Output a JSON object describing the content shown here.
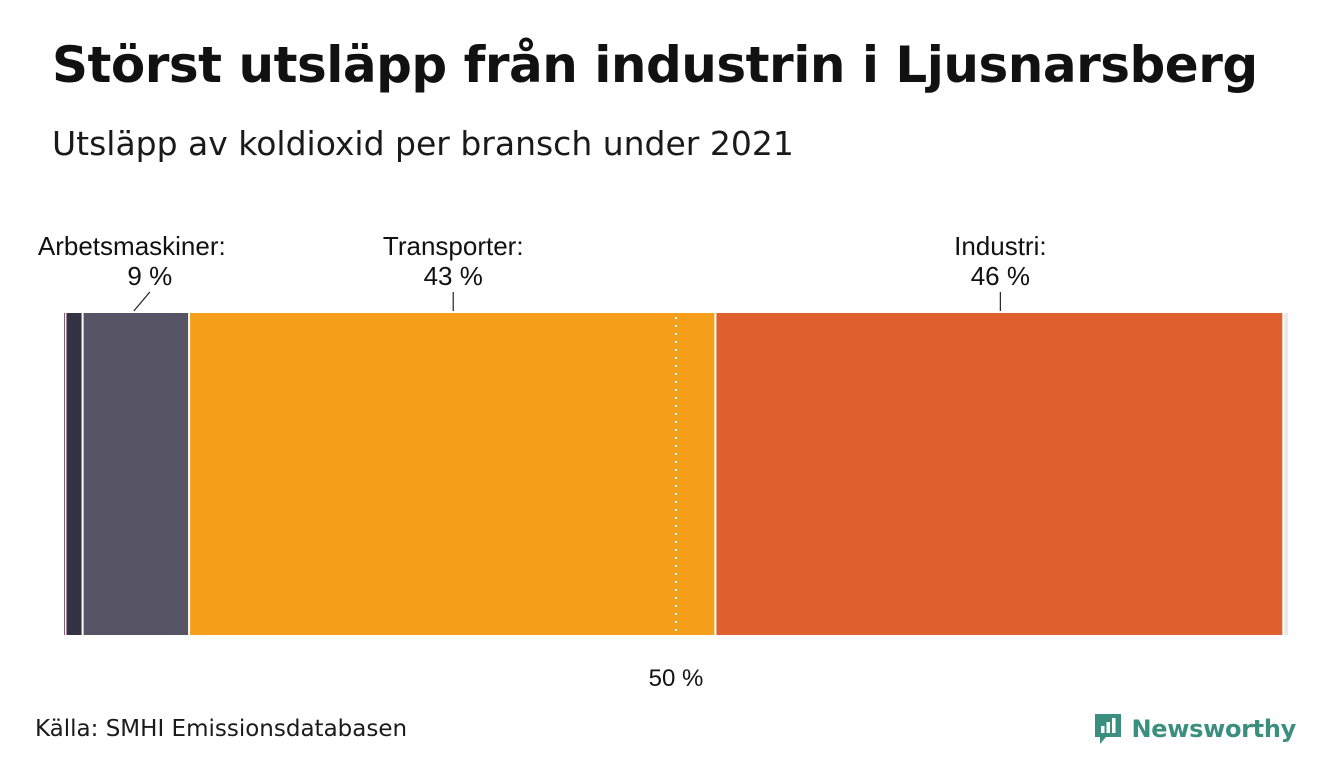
{
  "title": "Störst utsläpp från industrin i Ljusnarsberg",
  "subtitle": "Utsläpp av koldioxid per bransch under 2021",
  "source": "Källa: SMHI Emissionsdatabasen",
  "brand": {
    "name": "Newsworthy",
    "icon": "newsworthy-logo-icon",
    "color": "#3b8f7f"
  },
  "chart_data": {
    "type": "bar",
    "orientation": "stacked-horizontal",
    "unit": "%",
    "xlim": [
      0,
      100
    ],
    "series": [
      {
        "value": 0.2,
        "color": "#7a2a45",
        "label": null
      },
      {
        "value": 1.4,
        "color": "#333344",
        "label": null
      },
      {
        "value": 8.7,
        "color": "#575565",
        "label": "Arbetsmaskiner:",
        "value_label": "9 %"
      },
      {
        "value": 43.0,
        "color": "#f49e1a",
        "label": "Transporter:",
        "value_label": "43 %"
      },
      {
        "value": 46.4,
        "color": "#e05f2f",
        "label": "Industri:",
        "value_label": "46 %"
      },
      {
        "value": 0.3,
        "color": "#ece6e6",
        "label": null
      }
    ],
    "reference_line": {
      "value": 50,
      "label": "50 %",
      "style": "dotted"
    }
  }
}
